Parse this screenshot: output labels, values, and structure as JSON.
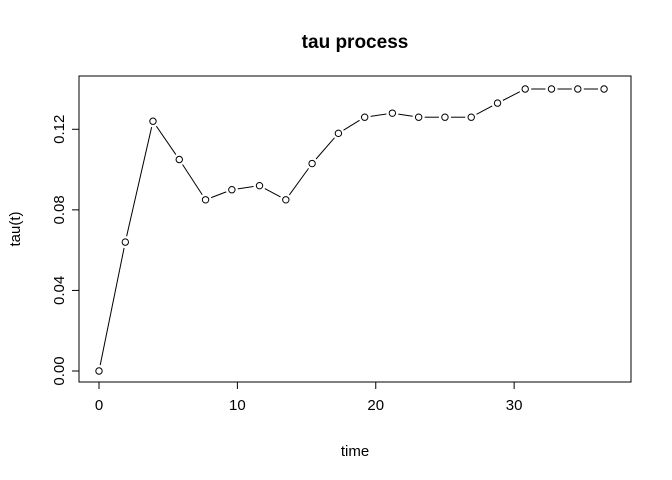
{
  "chart_data": {
    "type": "line",
    "title": "tau process",
    "xlabel": "time",
    "ylabel": "tau(t)",
    "xlim": [
      0,
      37
    ],
    "ylim": [
      0,
      0.14
    ],
    "xticks": [
      0,
      10,
      20,
      30
    ],
    "xtick_labels": [
      "0",
      "10",
      "20",
      "30"
    ],
    "yticks": [
      0,
      0.04,
      0.08,
      0.12
    ],
    "ytick_labels": [
      "0.00",
      "0.04",
      "0.08",
      "0.12"
    ],
    "grid": false,
    "series": [
      {
        "x": [
          0,
          1.9,
          3.9,
          5.8,
          7.7,
          9.6,
          11.6,
          13.5,
          15.4,
          17.3,
          19.2,
          21.2,
          23.1,
          25.0,
          26.9,
          28.8,
          30.8,
          32.7,
          34.6,
          36.5
        ],
        "values": [
          0.0,
          0.064,
          0.124,
          0.105,
          0.085,
          0.09,
          0.092,
          0.085,
          0.103,
          0.118,
          0.126,
          0.128,
          0.126,
          0.126,
          0.126,
          0.133,
          0.14,
          0.14,
          0.14,
          0.14
        ]
      }
    ]
  }
}
